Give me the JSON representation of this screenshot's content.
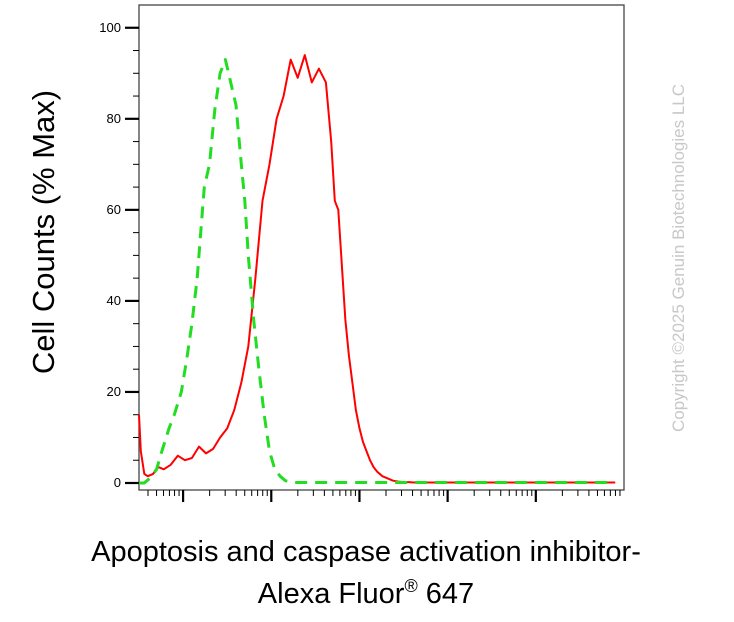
{
  "chart_data": {
    "type": "histogram-line",
    "ylabel": "Cell Counts (% Max)",
    "xlabel_line1": "Apoptosis and caspase activation inhibitor-",
    "xlabel_line2_prefix": "Alexa Fluor",
    "xlabel_line2_sup": "®",
    "xlabel_line2_suffix": " 647",
    "ylim": [
      0,
      105
    ],
    "xscale": "log",
    "yticks": [
      "0",
      "20",
      "40",
      "60",
      "80",
      "100"
    ],
    "ytick_values": [
      0,
      20,
      40,
      60,
      80,
      100
    ],
    "series": [
      {
        "color": "#ff0000",
        "style": "solid",
        "x": [
          0.5,
          0.52,
          0.56,
          0.6,
          0.66,
          0.72,
          0.78,
          0.86,
          0.94,
          1.02,
          1.1,
          1.18,
          1.26,
          1.34,
          1.42,
          1.5,
          1.58,
          1.66,
          1.74,
          1.82,
          1.9,
          1.98,
          2.06,
          2.14,
          2.22,
          2.3,
          2.38,
          2.46,
          2.54,
          2.62,
          2.68,
          2.72,
          2.76,
          2.8,
          2.84,
          2.88,
          2.92,
          2.96,
          3.0,
          3.04,
          3.08,
          3.12,
          3.16,
          3.2,
          3.26,
          3.32,
          3.38,
          3.44,
          3.5,
          3.56,
          3.62,
          3.68,
          3.74,
          3.8,
          3.86,
          3.92,
          3.98,
          4.06,
          4.14,
          4.3,
          4.5,
          4.7,
          4.9,
          5.1,
          5.3,
          5.5,
          5.7,
          5.9
        ],
        "y": [
          15,
          7,
          2,
          1.5,
          2,
          3.5,
          3,
          4,
          6,
          5,
          5.5,
          8,
          6.5,
          7.5,
          10,
          12,
          16,
          22,
          30,
          45,
          62,
          70,
          80,
          85,
          93,
          89,
          94,
          88,
          91,
          88,
          75,
          62,
          60,
          48,
          36,
          28,
          22,
          16,
          12,
          9,
          7,
          5,
          3.5,
          2.5,
          1.5,
          1,
          0.5,
          0.3,
          0.2,
          0.2,
          0.1,
          0.1,
          0.1,
          0.1,
          0.1,
          0.1,
          0.1,
          0.1,
          0.1,
          0.1,
          0.1,
          0.1,
          0.1,
          0.1,
          0.1,
          0.1,
          0.1,
          0.1
        ]
      },
      {
        "color": "#22dd22",
        "style": "dashed",
        "x": [
          0.5,
          0.56,
          0.62,
          0.7,
          0.76,
          0.84,
          0.9,
          0.98,
          1.04,
          1.1,
          1.16,
          1.2,
          1.24,
          1.3,
          1.36,
          1.42,
          1.48,
          1.54,
          1.6,
          1.66,
          1.7,
          1.74,
          1.8,
          1.86,
          1.92,
          1.98,
          2.04,
          2.1,
          2.16,
          2.22,
          2.28,
          2.34,
          2.4,
          2.46,
          2.52,
          2.58,
          2.64,
          2.72,
          2.8,
          2.9,
          3.0,
          3.2,
          3.5,
          3.9,
          4.3,
          4.7,
          5.1,
          5.5,
          5.9
        ],
        "y": [
          0,
          0,
          1,
          3,
          7,
          12,
          15,
          20,
          27,
          35,
          45,
          55,
          65,
          70,
          82,
          90,
          93,
          88,
          83,
          70,
          62,
          50,
          36,
          25,
          15,
          7,
          3,
          1.5,
          0.5,
          0.2,
          0.1,
          0.1,
          0.1,
          0.1,
          0.1,
          0.1,
          0.1,
          0.1,
          0.1,
          0.1,
          0.1,
          0.1,
          0.1,
          0.1,
          0.1,
          0.1,
          0.1,
          0.1,
          0.1
        ]
      }
    ]
  },
  "watermark": {
    "text": "Copyright ©2025 Genuin Biotechnologies LLC"
  }
}
